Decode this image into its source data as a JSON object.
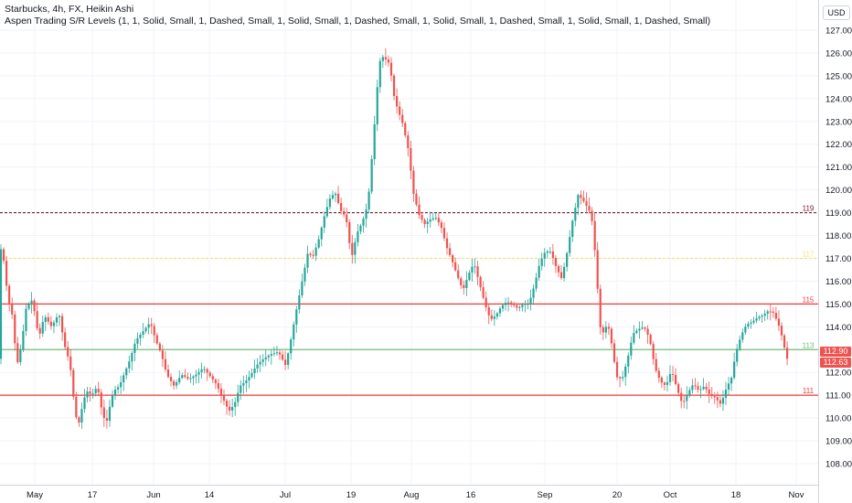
{
  "legend": {
    "title": "Starbucks, 4h, FX, Heikin Ashi",
    "indicator": "Aspen Trading S/R Levels (1, 1, Solid, Small, 1, Dashed, Small, 1, Solid, Small, 1, Dashed, Small, 1, Solid, Small, 1, Dashed, Small, 1, Solid, Small, 1, Dashed, Small)"
  },
  "currency_badge": "USD",
  "price_tags": {
    "last": "112.90",
    "prev": "112.63",
    "last_color": "#ef5350",
    "prev_color": "#ef5350"
  },
  "colors": {
    "up": "#26a69a",
    "down": "#ef5350",
    "grid": "#f0f3fa",
    "axis_text": "#131722"
  },
  "chart_data": {
    "type": "candlestick",
    "ylim": [
      107.3,
      127.6
    ],
    "y_ticks": [
      "108.00",
      "109.00",
      "110.00",
      "111.00",
      "112.00",
      "113.00",
      "114.00",
      "115.00",
      "116.00",
      "117.00",
      "118.00",
      "119.00",
      "120.00",
      "121.00",
      "122.00",
      "123.00",
      "124.00",
      "125.00",
      "126.00",
      "127.00"
    ],
    "x_range": [
      0,
      864
    ],
    "x_ticks": [
      {
        "label": "May",
        "x": 38
      },
      {
        "label": "17",
        "x": 101
      },
      {
        "label": "Jun",
        "x": 168
      },
      {
        "label": "14",
        "x": 229
      },
      {
        "label": "Jul",
        "x": 312
      },
      {
        "label": "19",
        "x": 384
      },
      {
        "label": "Aug",
        "x": 450
      },
      {
        "label": "16",
        "x": 515
      },
      {
        "label": "Sep",
        "x": 596
      },
      {
        "label": "20",
        "x": 675
      },
      {
        "label": "Oct",
        "x": 733
      },
      {
        "label": "18",
        "x": 805
      },
      {
        "label": "Nov",
        "x": 871
      }
    ],
    "levels": [
      {
        "value": 119,
        "label": "119",
        "color": "#7b2230",
        "style": "dashed"
      },
      {
        "value": 117,
        "label": "117",
        "color": "#f7e37c",
        "style": "dashed"
      },
      {
        "value": 115,
        "label": "115",
        "color": "#ef3b3b",
        "style": "solid"
      },
      {
        "value": 113,
        "label": "113",
        "color": "#6fbf73",
        "style": "solid"
      },
      {
        "value": 111,
        "label": "111",
        "color": "#ef3b3b",
        "style": "solid"
      }
    ],
    "path": [
      [
        0,
        117.7
      ],
      [
        5,
        117.1
      ],
      [
        10,
        115.3
      ],
      [
        15,
        114.5
      ],
      [
        20,
        112.3
      ],
      [
        25,
        113.2
      ],
      [
        30,
        114.8
      ],
      [
        37,
        115.2
      ],
      [
        44,
        113.5
      ],
      [
        50,
        114.5
      ],
      [
        58,
        114.0
      ],
      [
        66,
        114.6
      ],
      [
        72,
        113.2
      ],
      [
        78,
        112.4
      ],
      [
        84,
        110.1
      ],
      [
        88,
        109.8
      ],
      [
        92,
        110.6
      ],
      [
        96,
        111.2
      ],
      [
        102,
        111.0
      ],
      [
        108,
        111.4
      ],
      [
        114,
        110.1
      ],
      [
        118,
        109.8
      ],
      [
        122,
        110.6
      ],
      [
        126,
        111.2
      ],
      [
        132,
        111.4
      ],
      [
        138,
        112.0
      ],
      [
        144,
        112.6
      ],
      [
        150,
        113.4
      ],
      [
        158,
        113.8
      ],
      [
        166,
        114.2
      ],
      [
        172,
        113.4
      ],
      [
        178,
        112.8
      ],
      [
        184,
        111.9
      ],
      [
        192,
        111.4
      ],
      [
        200,
        111.9
      ],
      [
        208,
        111.7
      ],
      [
        216,
        111.9
      ],
      [
        224,
        112.2
      ],
      [
        230,
        111.9
      ],
      [
        238,
        111.5
      ],
      [
        246,
        110.8
      ],
      [
        252,
        110.3
      ],
      [
        258,
        110.6
      ],
      [
        264,
        111.4
      ],
      [
        270,
        111.6
      ],
      [
        276,
        111.9
      ],
      [
        282,
        112.3
      ],
      [
        290,
        112.6
      ],
      [
        298,
        112.8
      ],
      [
        306,
        112.9
      ],
      [
        314,
        112.3
      ],
      [
        320,
        113.5
      ],
      [
        326,
        114.8
      ],
      [
        332,
        116.0
      ],
      [
        338,
        117.2
      ],
      [
        344,
        117.1
      ],
      [
        350,
        117.8
      ],
      [
        356,
        118.8
      ],
      [
        362,
        119.6
      ],
      [
        368,
        119.9
      ],
      [
        374,
        119.1
      ],
      [
        380,
        118.8
      ],
      [
        386,
        117.0
      ],
      [
        392,
        118.1
      ],
      [
        398,
        118.6
      ],
      [
        404,
        119.4
      ],
      [
        410,
        122.2
      ],
      [
        414,
        124.4
      ],
      [
        418,
        125.9
      ],
      [
        424,
        125.7
      ],
      [
        428,
        125.5
      ],
      [
        432,
        124.2
      ],
      [
        436,
        123.6
      ],
      [
        442,
        122.9
      ],
      [
        448,
        121.8
      ],
      [
        454,
        119.8
      ],
      [
        460,
        118.9
      ],
      [
        466,
        118.5
      ],
      [
        472,
        118.7
      ],
      [
        478,
        118.8
      ],
      [
        484,
        118.4
      ],
      [
        490,
        117.5
      ],
      [
        496,
        116.9
      ],
      [
        502,
        116.2
      ],
      [
        508,
        115.6
      ],
      [
        514,
        116.3
      ],
      [
        520,
        116.8
      ],
      [
        526,
        115.9
      ],
      [
        532,
        115.0
      ],
      [
        538,
        114.3
      ],
      [
        544,
        114.5
      ],
      [
        550,
        114.9
      ],
      [
        556,
        115.1
      ],
      [
        562,
        115.0
      ],
      [
        568,
        114.8
      ],
      [
        574,
        115.0
      ],
      [
        580,
        115.0
      ],
      [
        586,
        115.8
      ],
      [
        592,
        116.8
      ],
      [
        598,
        117.3
      ],
      [
        604,
        117.3
      ],
      [
        610,
        116.6
      ],
      [
        616,
        116.1
      ],
      [
        622,
        117.3
      ],
      [
        628,
        118.7
      ],
      [
        634,
        119.8
      ],
      [
        640,
        119.5
      ],
      [
        646,
        119.1
      ],
      [
        650,
        118.5
      ],
      [
        654,
        116.4
      ],
      [
        658,
        114.0
      ],
      [
        662,
        113.7
      ],
      [
        666,
        114.2
      ],
      [
        670,
        113.4
      ],
      [
        676,
        111.8
      ],
      [
        682,
        111.7
      ],
      [
        688,
        112.6
      ],
      [
        694,
        113.7
      ],
      [
        700,
        113.9
      ],
      [
        706,
        114.0
      ],
      [
        712,
        113.5
      ],
      [
        718,
        112.2
      ],
      [
        724,
        111.6
      ],
      [
        730,
        111.4
      ],
      [
        736,
        112.1
      ],
      [
        742,
        111.3
      ],
      [
        748,
        110.6
      ],
      [
        754,
        111.1
      ],
      [
        760,
        111.5
      ],
      [
        766,
        111.2
      ],
      [
        772,
        111.4
      ],
      [
        778,
        111.0
      ],
      [
        784,
        110.9
      ],
      [
        790,
        110.6
      ],
      [
        796,
        111.3
      ],
      [
        802,
        111.8
      ],
      [
        806,
        112.8
      ],
      [
        812,
        113.6
      ],
      [
        818,
        114.1
      ],
      [
        824,
        114.2
      ],
      [
        830,
        114.4
      ],
      [
        836,
        114.5
      ],
      [
        842,
        114.7
      ],
      [
        848,
        114.6
      ],
      [
        854,
        114.0
      ],
      [
        858,
        113.4
      ],
      [
        862,
        112.6
      ]
    ]
  }
}
